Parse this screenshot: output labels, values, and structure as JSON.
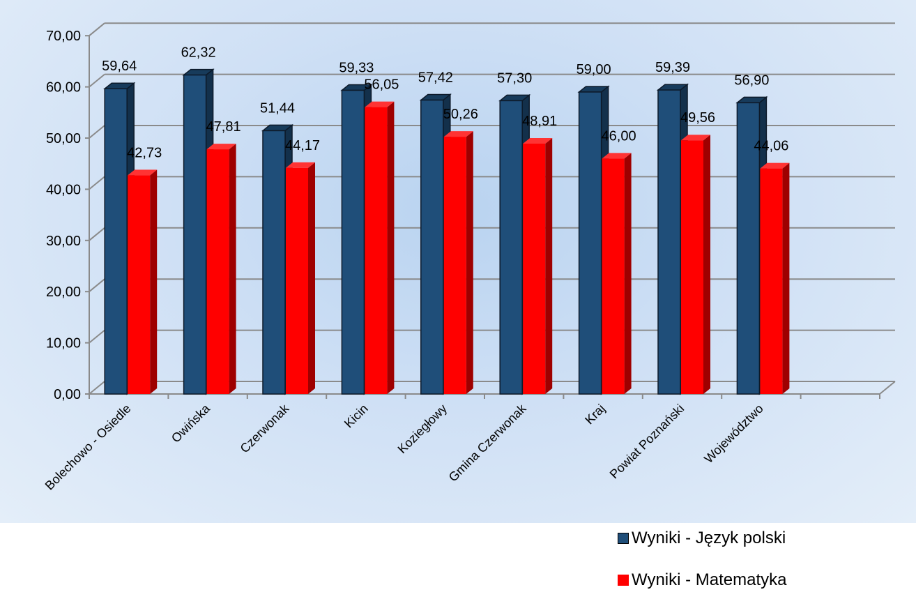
{
  "chart_data": {
    "type": "bar",
    "categories": [
      "Bolechowo - Osiedle",
      "Owińska",
      "Czerwonak",
      "Kicin",
      "Koziegłowy",
      "Gmina Czerwonak",
      "Kraj",
      "Powiat Poznański",
      "Województwo"
    ],
    "series": [
      {
        "name": "Wyniki  - Język polski",
        "color": "#1f4e79",
        "values": [
          59.64,
          62.32,
          51.44,
          59.33,
          57.42,
          57.3,
          59.0,
          59.39,
          56.9
        ],
        "labels": [
          "59,64",
          "62,32",
          "51,44",
          "59,33",
          "57,42",
          "57,30",
          "59,00",
          "59,39",
          "56,90"
        ]
      },
      {
        "name": "Wyniki  - Matematyka",
        "color": "#ff0000",
        "values": [
          42.73,
          47.81,
          44.17,
          56.05,
          50.26,
          48.91,
          46.0,
          49.56,
          44.06
        ],
        "labels": [
          "42,73",
          "47,81",
          "44,17",
          "56,05",
          "50,26",
          "48,91",
          "46,00",
          "49,56",
          "44,06"
        ]
      }
    ],
    "ylim": [
      0,
      70
    ],
    "yticks": [
      "0,00",
      "10,00",
      "20,00",
      "30,00",
      "40,00",
      "50,00",
      "60,00",
      "70,00"
    ],
    "grid": true,
    "legend_position": "bottom-right",
    "style": "3d-column"
  }
}
